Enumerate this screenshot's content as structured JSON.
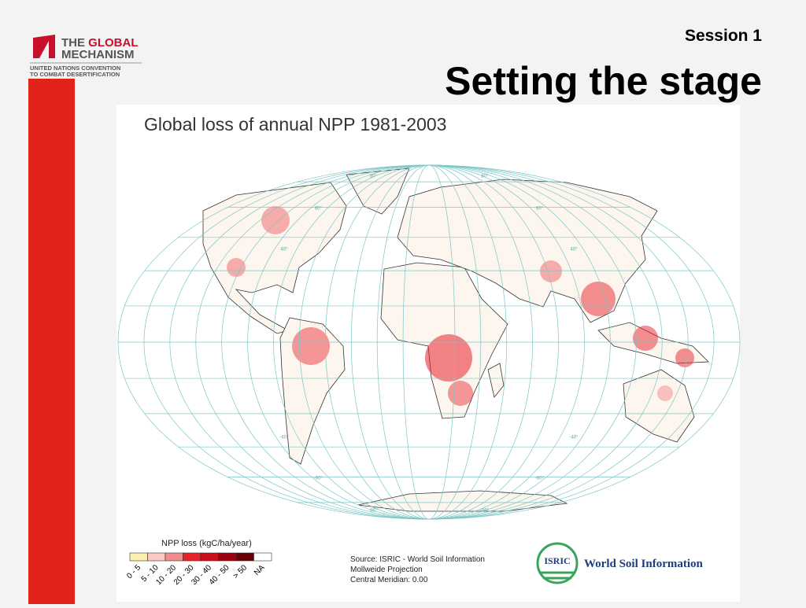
{
  "logo": {
    "the": "THE",
    "global": "GLOBAL",
    "mechanism": "MECHANISM",
    "line1": "UNITED NATIONS CONVENTION",
    "line2": "TO COMBAT DESERTIFICATION"
  },
  "session": "Session 1",
  "title": "Setting the stage",
  "map": {
    "title": "Global loss of annual NPP 1981-2003",
    "lat_labels": {
      "left": [
        "80°",
        "60°",
        "40°",
        "-40°",
        "-60°",
        "-80°"
      ],
      "right": [
        "80°",
        "60°",
        "40°",
        "-40°",
        "-60°",
        "-80°"
      ]
    },
    "legend": {
      "title": "NPP loss (kgC/ha/year)",
      "items": [
        {
          "label": "0 - 5",
          "color": "#fdefb2"
        },
        {
          "label": "5 - 10",
          "color": "#fbc8c4"
        },
        {
          "label": "10 - 20",
          "color": "#f08c8c"
        },
        {
          "label": "20 - 30",
          "color": "#e8212b"
        },
        {
          "label": "30 - 40",
          "color": "#cc0e18"
        },
        {
          "label": "40 - 50",
          "color": "#9e0010"
        },
        {
          "label": "> 50",
          "color": "#6a0008"
        },
        {
          "label": "NA",
          "color": "#ffffff"
        }
      ]
    },
    "source": [
      "Source: ISRIC - World Soil Information",
      "Mollweide Projection",
      "Central Meridian: 0.00"
    ],
    "isric": {
      "badge": "ISRIC",
      "name": "World Soil Information"
    }
  }
}
